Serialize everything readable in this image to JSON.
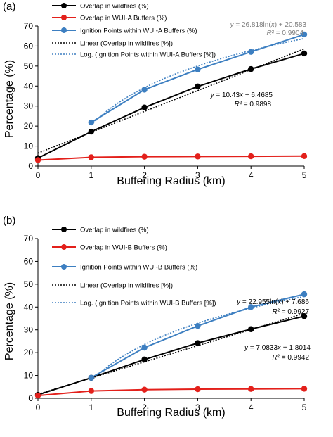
{
  "chart_data": [
    {
      "type": "line",
      "panel_label": "(a)",
      "xlabel": "Buffering Radius (km)",
      "ylabel": "Percentage (%)",
      "xlim": [
        0,
        5
      ],
      "ylim": [
        0,
        70
      ],
      "x_ticks": [
        "0",
        "1",
        "2",
        "3",
        "4",
        "5"
      ],
      "y_ticks": [
        "0",
        "10",
        "20",
        "30",
        "40",
        "50",
        "60",
        "70"
      ],
      "grid": false,
      "legend_position": "top-left",
      "series": [
        {
          "name": "Overlap in wildfires (%)",
          "color": "#000000",
          "style": "solid-marker",
          "x": [
            0,
            1,
            2,
            3,
            4,
            5
          ],
          "y": [
            4.0,
            17.2,
            29.3,
            39.8,
            48.5,
            56.3
          ]
        },
        {
          "name": "Overlap in WUI-A Buffers (%)",
          "color": "#e3201b",
          "style": "solid-marker",
          "x": [
            0,
            1,
            2,
            3,
            4,
            5
          ],
          "y": [
            3.0,
            4.4,
            4.7,
            4.8,
            4.9,
            5.0
          ]
        },
        {
          "name": "Ignition Points within WUI-A Buffers (%)",
          "color": "#3d7fc1",
          "style": "solid-marker",
          "x": [
            1,
            2,
            3,
            4,
            5
          ],
          "y": [
            21.8,
            38.2,
            48.3,
            57.1,
            65.8
          ]
        },
        {
          "name": "Linear (Overlap in wildfires [%])",
          "color": "#000000",
          "style": "dotted",
          "fit": "linear",
          "slope": 10.43,
          "intercept": 6.4685
        },
        {
          "name": "Log. (Ignition Points within WUI-A Buffers [%])",
          "color": "#3d7fc1",
          "style": "dotted",
          "fit": "log",
          "a": 26.818,
          "b": 20.583
        }
      ],
      "annotations": [
        {
          "line1": "y = 26.818ln(x) + 20.583",
          "line2": "R² = 0.9904",
          "color": "#7f7f7f"
        },
        {
          "line1": "y = 10.43x + 6.4685",
          "line2": "R² = 0.9898",
          "color": "#000000"
        }
      ]
    },
    {
      "type": "line",
      "panel_label": "(b)",
      "xlabel": "Buffering Radius (km)",
      "ylabel": "Percentage (%)",
      "xlim": [
        0,
        5
      ],
      "ylim": [
        0,
        70
      ],
      "x_ticks": [
        "0",
        "1",
        "2",
        "3",
        "4",
        "5"
      ],
      "y_ticks": [
        "0",
        "10",
        "20",
        "30",
        "40",
        "50",
        "60",
        "70"
      ],
      "grid": false,
      "legend_position": "top-left",
      "series": [
        {
          "name": "Overlap in wildfires (%)",
          "color": "#000000",
          "style": "solid-marker",
          "x": [
            0,
            1,
            2,
            3,
            4,
            5
          ],
          "y": [
            1.5,
            9.0,
            17.0,
            24.2,
            30.3,
            36.0
          ]
        },
        {
          "name": "Overlap in WUI-B Buffers (%)",
          "color": "#e3201b",
          "style": "solid-marker",
          "x": [
            0,
            1,
            2,
            3,
            4,
            5
          ],
          "y": [
            1.2,
            3.2,
            3.8,
            4.0,
            4.1,
            4.2
          ]
        },
        {
          "name": "Ignition Points within WUI-B Buffers (%)",
          "color": "#3d7fc1",
          "style": "solid-marker",
          "x": [
            1,
            2,
            3,
            4,
            5
          ],
          "y": [
            9.0,
            22.2,
            31.7,
            40.0,
            45.6
          ]
        },
        {
          "name": "Linear (Overlap in wildfires [%])",
          "color": "#000000",
          "style": "dotted",
          "fit": "linear",
          "slope": 7.0833,
          "intercept": 1.8014
        },
        {
          "name": "Log. (Ignition Points within WUI-B Buffers [%])",
          "color": "#3d7fc1",
          "style": "dotted",
          "fit": "log",
          "a": 22.955,
          "b": 7.686
        }
      ],
      "annotations": [
        {
          "line1": "y = 22.955ln(x) + 7.686",
          "line2": "R² = 0.9927",
          "color": "#000000"
        },
        {
          "line1": "y = 7.0833x + 1.8014",
          "line2": "R² = 0.9942",
          "color": "#000000"
        }
      ]
    }
  ]
}
